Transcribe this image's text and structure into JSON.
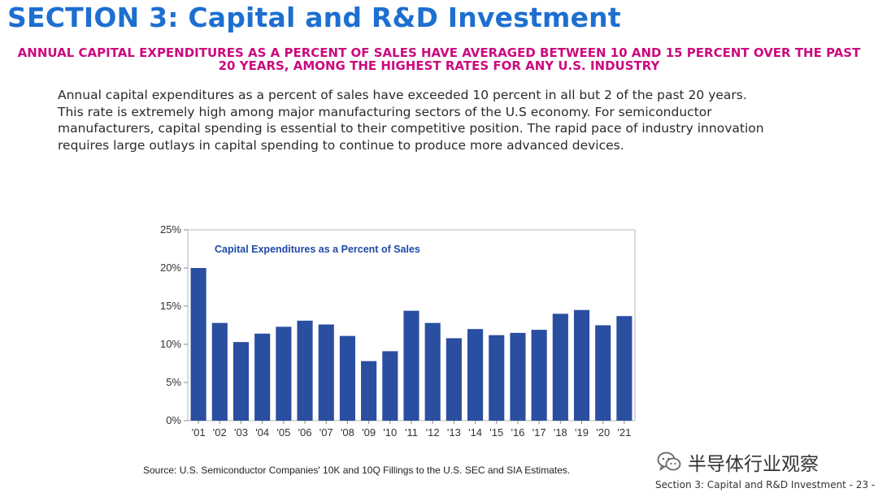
{
  "page": {
    "title": "SECTION 3: Capital and R&D Investment",
    "subheading": "ANNUAL CAPITAL EXPENDITURES AS A PERCENT OF SALES HAVE AVERAGED BETWEEN 10 AND 15 PERCENT OVER THE PAST 20 YEARS, AMONG THE HIGHEST RATES FOR ANY U.S. INDUSTRY",
    "body": "Annual capital expenditures as a percent of sales have exceeded 10 percent in all but 2 of the past 20 years. This rate is extremely high among major manufacturing sectors of the U.S economy. For semiconductor manufacturers, capital spending is essential to their competitive position. The rapid pace of industry innovation requires large outlays in capital spending to continue to produce more advanced devices.",
    "source": "Source: U.S. Semiconductor Companies' 10K and 10Q Fillings to the U.S. SEC and SIA Estimates.",
    "watermark": "半导体行业观察",
    "footer": "Section 3: Capital and R&D Investment  - 23 -"
  },
  "colors": {
    "title": "#1d6fd0",
    "subheading": "#cc0a7e",
    "bar": "#2a4ea0",
    "chart_title": "#1f49a8"
  },
  "icons": {
    "watermark": "wechat-icon"
  },
  "chart_data": {
    "type": "bar",
    "title": "Capital Expenditures as a Percent of Sales",
    "categories": [
      "'01",
      "'02",
      "'03",
      "'04",
      "'05",
      "'06",
      "'07",
      "'08",
      "'09",
      "'10",
      "'11",
      "'12",
      "'13",
      "'14",
      "'15",
      "'16",
      "'17",
      "'18",
      "'19",
      "'20",
      "'21"
    ],
    "values": [
      20.0,
      12.8,
      10.3,
      11.4,
      12.3,
      13.1,
      12.6,
      11.1,
      7.8,
      9.1,
      14.4,
      12.8,
      10.8,
      12.0,
      11.2,
      11.5,
      11.9,
      14.0,
      14.5,
      12.5,
      13.7
    ],
    "yticks": [
      "0%",
      "5%",
      "10%",
      "15%",
      "20%",
      "25%"
    ],
    "ylim": [
      0,
      25
    ],
    "grid": false,
    "xlabel": "",
    "ylabel": ""
  }
}
